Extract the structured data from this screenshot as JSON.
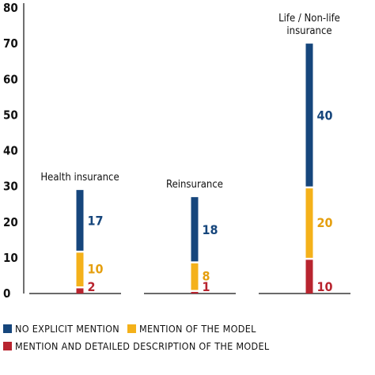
{
  "chart_data": {
    "type": "bar",
    "stacked": true,
    "title": "",
    "xlabel": "",
    "ylabel": "",
    "ylim": [
      0,
      80
    ],
    "yticks": [
      0,
      10,
      20,
      30,
      40,
      50,
      60,
      70,
      80
    ],
    "grid": false,
    "legend_position": "bottom",
    "categories": [
      "Health insurance",
      "Reinsurance",
      "Life / Non-life insurance"
    ],
    "series": [
      {
        "name": "MENTION AND DETAILED DESCRIPTION OF THE MODEL",
        "color": "#b8242f",
        "values": [
          2,
          1,
          10
        ]
      },
      {
        "name": "MENTION OF THE MODEL",
        "color": "#f4b11a",
        "values": [
          10,
          8,
          20
        ]
      },
      {
        "name": "NO EXPLICIT MENTION",
        "color": "#16467c",
        "values": [
          17,
          18,
          40
        ]
      }
    ]
  }
}
